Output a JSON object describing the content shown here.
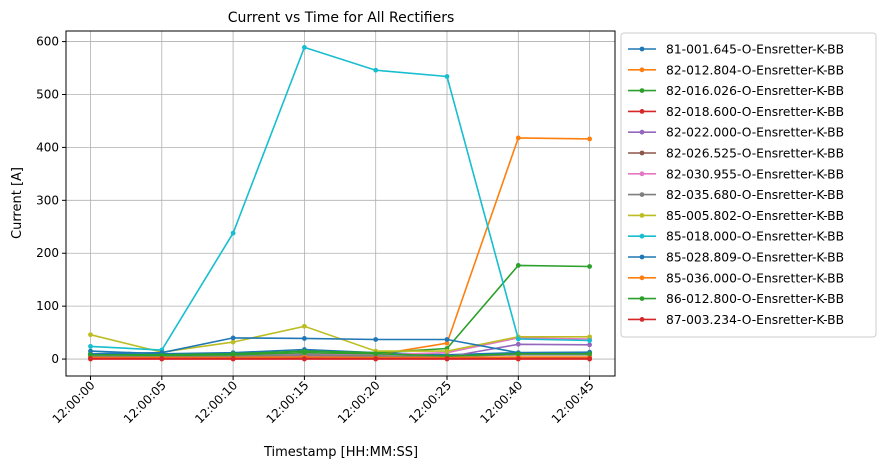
{
  "chart_data": {
    "type": "line",
    "title": "Current vs Time for All Rectifiers",
    "xlabel": "Timestamp [HH:MM:SS]",
    "ylabel": "Current [A]",
    "x": [
      "12:00:00",
      "12:00:05",
      "12:00:10",
      "12:00:15",
      "12:00:20",
      "12:00:25",
      "12:00:40",
      "12:00:45"
    ],
    "ylim": [
      -32,
      620
    ],
    "yticks": [
      0,
      100,
      200,
      300,
      400,
      500,
      600
    ],
    "grid": true,
    "legend_position": "outside-right",
    "series": [
      {
        "name": "81-001.645-O-Ensretter-K-BB",
        "color": "#1f77b4",
        "values": [
          15,
          10,
          12,
          18,
          12,
          8,
          12,
          13
        ]
      },
      {
        "name": "82-012.804-O-Ensretter-K-BB",
        "color": "#ff7f0e",
        "values": [
          8,
          6,
          8,
          9,
          8,
          30,
          418,
          416
        ]
      },
      {
        "name": "82-016.026-O-Ensretter-K-BB",
        "color": "#2ca02c",
        "values": [
          10,
          8,
          10,
          15,
          12,
          20,
          177,
          175
        ]
      },
      {
        "name": "82-018.600-O-Ensretter-K-BB",
        "color": "#d62728",
        "values": [
          0,
          0,
          0,
          0,
          0,
          0,
          0,
          0
        ]
      },
      {
        "name": "82-022.000-O-Ensretter-K-BB",
        "color": "#9467bd",
        "values": [
          4,
          3,
          4,
          6,
          5,
          4,
          28,
          27
        ]
      },
      {
        "name": "82-026.525-O-Ensretter-K-BB",
        "color": "#8c564b",
        "values": [
          2,
          2,
          2,
          3,
          2,
          2,
          3,
          3
        ]
      },
      {
        "name": "82-030.955-O-Ensretter-K-BB",
        "color": "#e377c2",
        "values": [
          6,
          5,
          6,
          10,
          8,
          12,
          40,
          38
        ]
      },
      {
        "name": "82-035.680-O-Ensretter-K-BB",
        "color": "#7f7f7f",
        "values": [
          5,
          4,
          5,
          8,
          6,
          5,
          8,
          8
        ]
      },
      {
        "name": "85-005.802-O-Ensretter-K-BB",
        "color": "#bcbd22",
        "values": [
          46,
          13,
          32,
          62,
          15,
          15,
          42,
          42
        ]
      },
      {
        "name": "85-018.000-O-Ensretter-K-BB",
        "color": "#17becf",
        "values": [
          24,
          17,
          238,
          589,
          546,
          534,
          38,
          35
        ]
      },
      {
        "name": "85-028.809-O-Ensretter-K-BB",
        "color": "#1f77b4",
        "values": [
          10,
          12,
          40,
          39,
          37,
          37,
          12,
          12
        ]
      },
      {
        "name": "85-036.000-O-Ensretter-K-BB",
        "color": "#ff7f0e",
        "values": [
          3,
          3,
          3,
          4,
          3,
          3,
          4,
          4
        ]
      },
      {
        "name": "86-012.800-O-Ensretter-K-BB",
        "color": "#2ca02c",
        "values": [
          8,
          7,
          8,
          12,
          10,
          6,
          10,
          10
        ]
      },
      {
        "name": "87-003.234-O-Ensretter-K-BB",
        "color": "#d62728",
        "values": [
          1,
          1,
          1,
          1,
          1,
          1,
          1,
          1
        ]
      }
    ]
  }
}
